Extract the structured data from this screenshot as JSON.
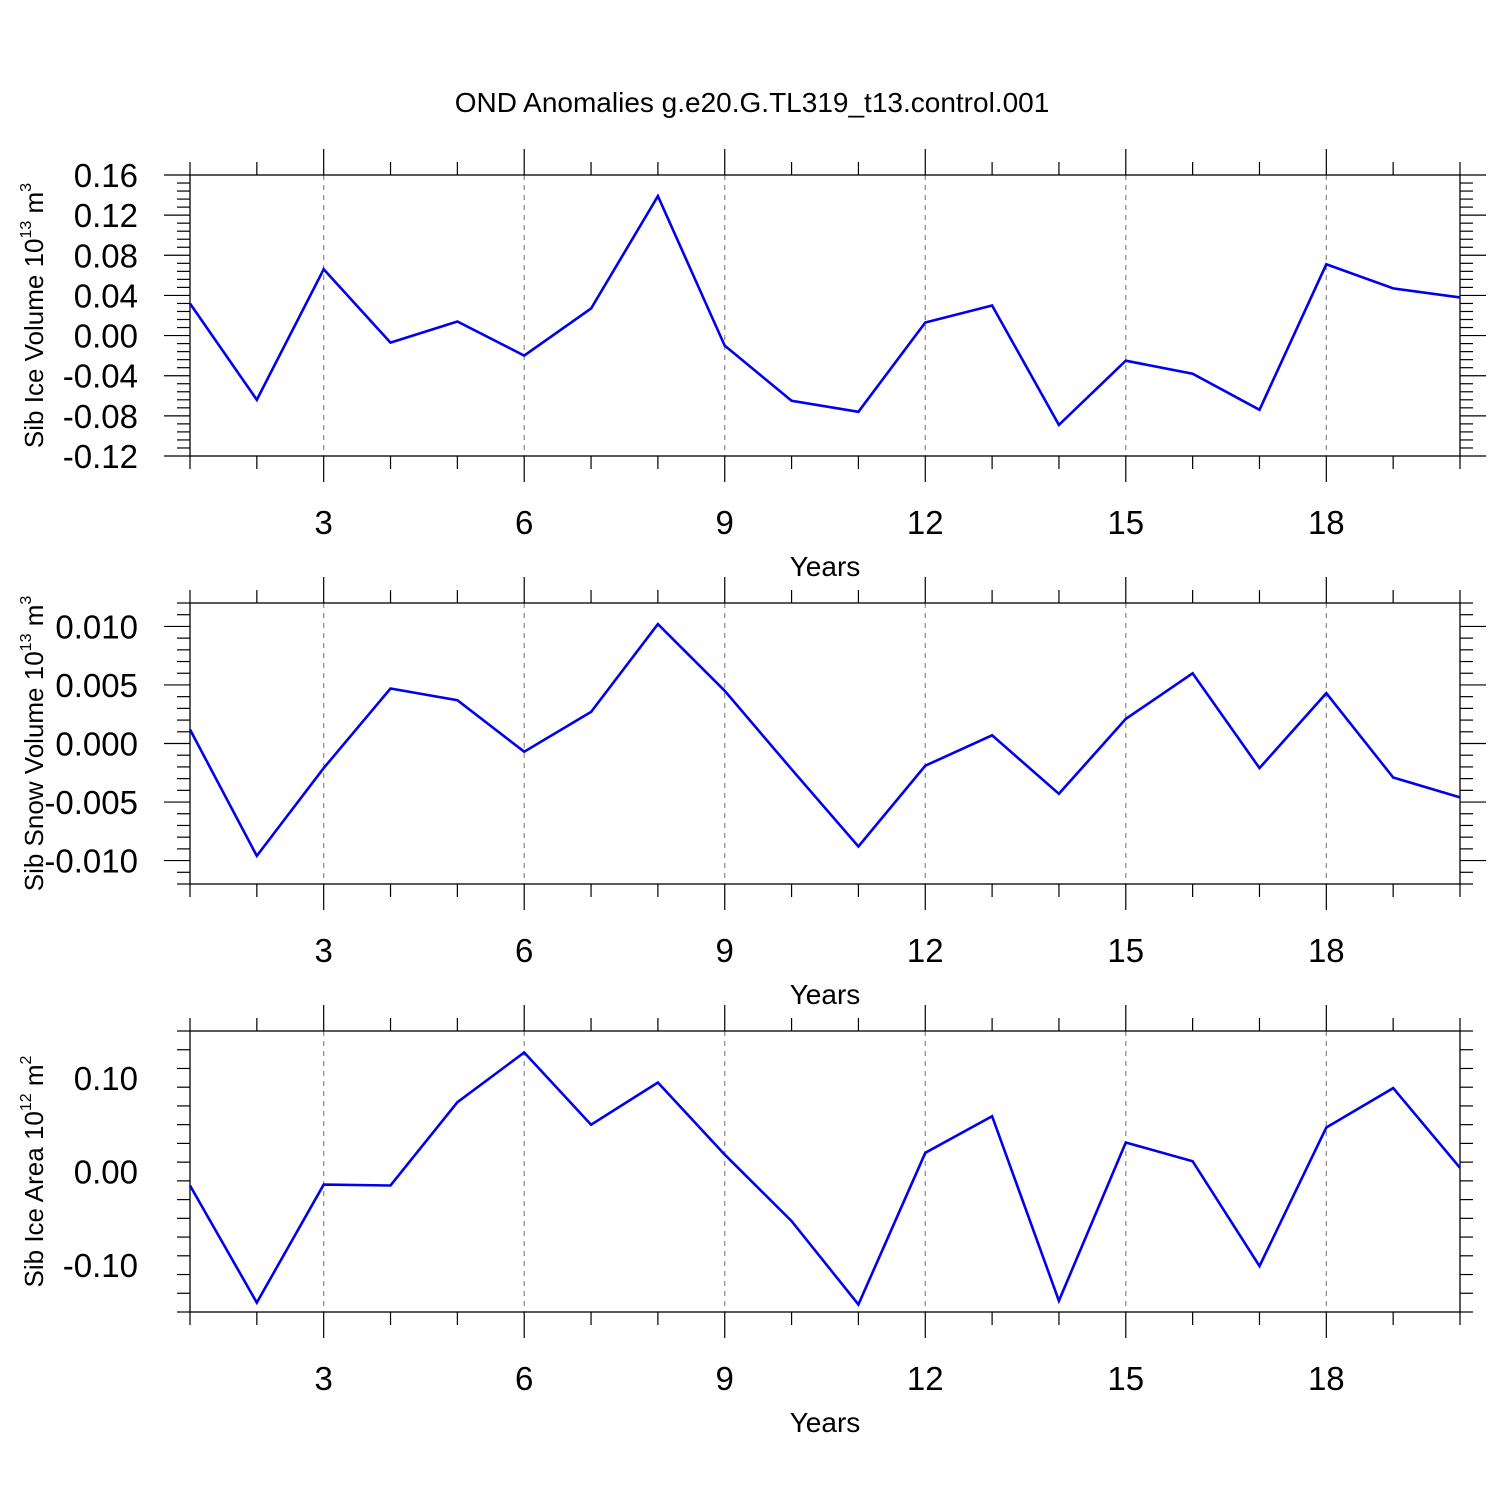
{
  "title": "OND Anomalies g.e20.G.TL319_t13.control.001",
  "chart_data": [
    {
      "type": "line",
      "ylabel_main": "Sib Ice Volume 10",
      "ylabel_exp": "13",
      "ylabel_unit": "m",
      "ylabel_unit_exp": "3",
      "xlabel": "Years",
      "xlim": [
        1,
        20
      ],
      "ylim": [
        -0.12,
        0.16
      ],
      "yticks": [
        -0.12,
        -0.08,
        -0.04,
        0.0,
        0.04,
        0.08,
        0.12,
        0.16
      ],
      "ytick_labels": [
        "-0.12",
        "-0.08",
        "-0.04",
        "0.00",
        "0.04",
        "0.08",
        "0.12",
        "0.16"
      ],
      "xticks": [
        3,
        6,
        9,
        12,
        15,
        18
      ],
      "xtick_labels": [
        "3",
        "6",
        "9",
        "12",
        "15",
        "18"
      ],
      "color": "#0000ee",
      "x": [
        1,
        2,
        3,
        4,
        5,
        6,
        7,
        8,
        9,
        10,
        11,
        12,
        13,
        14,
        15,
        16,
        17,
        18,
        19,
        20
      ],
      "values": [
        0.032,
        -0.064,
        0.066,
        -0.007,
        0.014,
        -0.02,
        0.027,
        0.139,
        -0.01,
        -0.065,
        -0.076,
        0.013,
        0.03,
        -0.089,
        -0.025,
        -0.038,
        -0.074,
        0.071,
        0.047,
        0.038
      ]
    },
    {
      "type": "line",
      "ylabel_main": "Sib Snow Volume 10",
      "ylabel_exp": "13",
      "ylabel_unit": "m",
      "ylabel_unit_exp": "3",
      "xlabel": "Years",
      "xlim": [
        1,
        20
      ],
      "ylim": [
        -0.012,
        0.012
      ],
      "yticks": [
        -0.01,
        -0.005,
        0.0,
        0.005,
        0.01
      ],
      "ytick_labels": [
        "-0.010",
        "-0.005",
        "0.000",
        "0.005",
        "0.010"
      ],
      "xticks": [
        3,
        6,
        9,
        12,
        15,
        18
      ],
      "xtick_labels": [
        "3",
        "6",
        "9",
        "12",
        "15",
        "18"
      ],
      "color": "#0000ee",
      "x": [
        1,
        2,
        3,
        4,
        5,
        6,
        7,
        8,
        9,
        10,
        11,
        12,
        13,
        14,
        15,
        16,
        17,
        18,
        19,
        20
      ],
      "values": [
        0.0012,
        -0.0096,
        -0.0021,
        0.0047,
        0.0037,
        -0.0007,
        0.0027,
        0.0102,
        0.0045,
        -0.0022,
        -0.0088,
        -0.0019,
        0.0007,
        -0.0043,
        0.0021,
        0.006,
        -0.0021,
        0.0043,
        -0.0029,
        -0.0046
      ]
    },
    {
      "type": "line",
      "ylabel_main": "Sib Ice Area 10",
      "ylabel_exp": "12",
      "ylabel_unit": "m",
      "ylabel_unit_exp": "2",
      "xlabel": "Years",
      "xlim": [
        1,
        20
      ],
      "ylim": [
        -0.15,
        0.15
      ],
      "yticks": [
        -0.1,
        0.0,
        0.1
      ],
      "ytick_labels": [
        "-0.10",
        "0.00",
        "0.10"
      ],
      "xticks": [
        3,
        6,
        9,
        12,
        15,
        18
      ],
      "xtick_labels": [
        "3",
        "6",
        "9",
        "12",
        "15",
        "18"
      ],
      "color": "#0000ee",
      "x": [
        1,
        2,
        3,
        4,
        5,
        6,
        7,
        8,
        9,
        10,
        11,
        12,
        13,
        14,
        15,
        16,
        17,
        18,
        19,
        20
      ],
      "values": [
        -0.015,
        -0.14,
        -0.014,
        -0.015,
        0.074,
        0.127,
        0.05,
        0.095,
        0.018,
        -0.053,
        -0.142,
        0.02,
        0.059,
        -0.138,
        0.031,
        0.011,
        -0.101,
        0.047,
        0.089,
        0.004
      ]
    }
  ]
}
